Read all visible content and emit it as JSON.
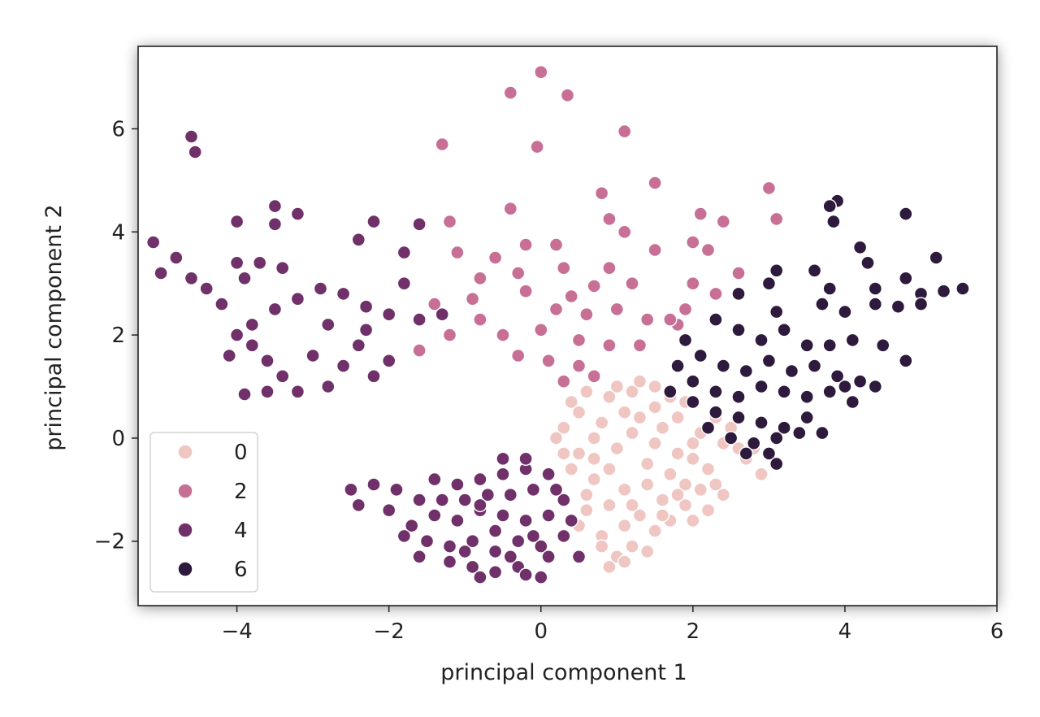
{
  "chart_data": {
    "type": "scatter",
    "title": "",
    "xlabel": "principal component 1",
    "ylabel": "principal component 2",
    "xlim": [
      -5.3,
      6.0
    ],
    "ylim": [
      -3.25,
      7.6
    ],
    "xticks": [
      -4,
      -2,
      0,
      2,
      4,
      6
    ],
    "yticks": [
      -2,
      0,
      2,
      4,
      6
    ],
    "xtick_labels": [
      "−4",
      "−2",
      "0",
      "2",
      "4",
      "6"
    ],
    "ytick_labels": [
      "−2",
      "0",
      "2",
      "4",
      "6"
    ],
    "grid": false,
    "legend": {
      "placement": "lower-left",
      "entries": [
        {
          "label": "0",
          "color": "#efc6c2"
        },
        {
          "label": "2",
          "color": "#c86f96"
        },
        {
          "label": "4",
          "color": "#70306a"
        },
        {
          "label": "6",
          "color": "#2e1a3c"
        }
      ]
    },
    "series": [
      {
        "color": "#efc6c2",
        "points": [
          [
            0.4,
            0.7
          ],
          [
            0.6,
            0.9
          ],
          [
            0.9,
            0.8
          ],
          [
            1.2,
            0.9
          ],
          [
            1.5,
            0.6
          ],
          [
            1.8,
            0.4
          ],
          [
            2.1,
            0.1
          ],
          [
            2.4,
            -0.1
          ],
          [
            2.7,
            -0.4
          ],
          [
            2.9,
            -0.7
          ],
          [
            0.3,
            0.2
          ],
          [
            0.5,
            -0.3
          ],
          [
            0.7,
            -0.8
          ],
          [
            0.9,
            -1.3
          ],
          [
            1.1,
            -1.7
          ],
          [
            1.3,
            -1.5
          ],
          [
            1.6,
            -1.2
          ],
          [
            1.9,
            -0.9
          ],
          [
            2.2,
            -0.6
          ],
          [
            0.8,
            0.3
          ],
          [
            1.0,
            -0.2
          ],
          [
            1.2,
            0.1
          ],
          [
            1.4,
            -0.5
          ],
          [
            1.6,
            0.2
          ],
          [
            1.8,
            -0.3
          ],
          [
            2.0,
            -0.1
          ],
          [
            0.6,
            -1.4
          ],
          [
            0.8,
            -1.9
          ],
          [
            1.0,
            -2.3
          ],
          [
            1.2,
            -2.1
          ],
          [
            1.5,
            -1.8
          ],
          [
            1.7,
            -1.6
          ],
          [
            0.5,
            0.5
          ],
          [
            0.7,
            0.0
          ],
          [
            1.1,
            0.5
          ],
          [
            1.3,
            0.4
          ],
          [
            1.5,
            -0.1
          ],
          [
            1.7,
            -0.7
          ],
          [
            2.0,
            -0.4
          ],
          [
            2.3,
            -0.9
          ],
          [
            0.4,
            -0.6
          ],
          [
            0.6,
            -1.1
          ],
          [
            0.9,
            -0.6
          ],
          [
            1.1,
            -1.0
          ],
          [
            1.4,
            -0.9
          ],
          [
            1.6,
            -1.5
          ],
          [
            1.9,
            -1.3
          ],
          [
            2.1,
            -1.0
          ],
          [
            2.5,
            0.2
          ],
          [
            2.6,
            -0.2
          ],
          [
            2.8,
            -0.2
          ],
          [
            0.2,
            0.0
          ],
          [
            0.3,
            -0.3
          ],
          [
            1.0,
            1.0
          ],
          [
            1.3,
            1.1
          ],
          [
            1.5,
            1.0
          ],
          [
            1.7,
            0.8
          ],
          [
            0.8,
            -2.1
          ],
          [
            1.1,
            -2.4
          ],
          [
            1.4,
            -2.2
          ],
          [
            2.2,
            -1.4
          ],
          [
            2.4,
            -1.1
          ],
          [
            0.9,
            -2.5
          ],
          [
            1.2,
            -1.3
          ],
          [
            1.8,
            -1.1
          ],
          [
            0.5,
            -1.7
          ],
          [
            2.0,
            -1.6
          ],
          [
            2.3,
            0.4
          ],
          [
            1.9,
            0.7
          ],
          [
            0.7,
            -0.4
          ]
        ]
      },
      {
        "color": "#c86f96",
        "points": [
          [
            -0.4,
            6.7
          ],
          [
            0.0,
            7.1
          ],
          [
            0.35,
            6.65
          ],
          [
            1.1,
            5.95
          ],
          [
            -1.3,
            5.7
          ],
          [
            -0.05,
            5.65
          ],
          [
            1.5,
            4.95
          ],
          [
            0.8,
            4.75
          ],
          [
            -0.4,
            4.45
          ],
          [
            3.0,
            4.85
          ],
          [
            2.1,
            4.35
          ],
          [
            2.4,
            4.2
          ],
          [
            3.1,
            4.25
          ],
          [
            -1.2,
            4.2
          ],
          [
            0.9,
            4.25
          ],
          [
            1.1,
            4.0
          ],
          [
            0.2,
            3.75
          ],
          [
            -0.2,
            3.75
          ],
          [
            1.5,
            3.65
          ],
          [
            2.0,
            3.8
          ],
          [
            2.2,
            3.65
          ],
          [
            -0.6,
            3.5
          ],
          [
            -1.1,
            3.6
          ],
          [
            0.3,
            3.3
          ],
          [
            0.9,
            3.3
          ],
          [
            -0.8,
            3.1
          ],
          [
            -0.3,
            3.2
          ],
          [
            0.7,
            2.95
          ],
          [
            1.2,
            3.0
          ],
          [
            2.0,
            3.0
          ],
          [
            2.3,
            2.8
          ],
          [
            -1.4,
            2.6
          ],
          [
            -0.9,
            2.7
          ],
          [
            0.2,
            2.5
          ],
          [
            0.6,
            2.4
          ],
          [
            1.0,
            2.5
          ],
          [
            1.4,
            2.3
          ],
          [
            1.8,
            2.2
          ],
          [
            -1.6,
            2.3
          ],
          [
            -1.2,
            2.0
          ],
          [
            -0.5,
            2.0
          ],
          [
            0.0,
            2.1
          ],
          [
            0.5,
            1.9
          ],
          [
            0.9,
            1.8
          ],
          [
            1.3,
            1.8
          ],
          [
            1.7,
            2.3
          ],
          [
            -0.3,
            1.6
          ],
          [
            0.1,
            1.5
          ],
          [
            0.5,
            1.4
          ],
          [
            -1.6,
            1.7
          ],
          [
            -0.8,
            2.3
          ],
          [
            0.3,
            1.1
          ],
          [
            0.7,
            1.2
          ],
          [
            1.9,
            2.5
          ],
          [
            2.6,
            3.2
          ],
          [
            -0.2,
            2.85
          ],
          [
            0.4,
            2.75
          ]
        ]
      },
      {
        "color": "#70306a",
        "points": [
          [
            -4.6,
            5.85
          ],
          [
            -4.55,
            5.55
          ],
          [
            -5.1,
            3.8
          ],
          [
            -4.8,
            3.5
          ],
          [
            -5.0,
            3.2
          ],
          [
            -4.6,
            3.1
          ],
          [
            -4.4,
            2.9
          ],
          [
            -4.2,
            2.6
          ],
          [
            -4.0,
            4.2
          ],
          [
            -3.5,
            4.5
          ],
          [
            -3.5,
            4.15
          ],
          [
            -3.2,
            4.35
          ],
          [
            -2.4,
            3.85
          ],
          [
            -2.2,
            4.2
          ],
          [
            -1.6,
            4.15
          ],
          [
            -4.0,
            3.4
          ],
          [
            -3.9,
            3.1
          ],
          [
            -3.7,
            3.4
          ],
          [
            -3.4,
            3.3
          ],
          [
            -3.2,
            2.7
          ],
          [
            -2.9,
            2.9
          ],
          [
            -2.6,
            2.8
          ],
          [
            -2.3,
            2.55
          ],
          [
            -2.0,
            2.4
          ],
          [
            -1.8,
            3.6
          ],
          [
            -1.8,
            3.0
          ],
          [
            -1.6,
            2.3
          ],
          [
            -4.0,
            2.0
          ],
          [
            -3.8,
            1.8
          ],
          [
            -3.6,
            1.5
          ],
          [
            -3.4,
            1.2
          ],
          [
            -3.2,
            0.9
          ],
          [
            -3.0,
            1.6
          ],
          [
            -2.8,
            2.2
          ],
          [
            -2.6,
            1.4
          ],
          [
            -2.4,
            1.8
          ],
          [
            -2.2,
            1.2
          ],
          [
            -4.1,
            1.6
          ],
          [
            -3.8,
            2.2
          ],
          [
            -3.5,
            2.5
          ],
          [
            -2.8,
            1.0
          ],
          [
            -2.0,
            1.5
          ],
          [
            -3.9,
            0.85
          ],
          [
            -3.6,
            0.9
          ],
          [
            -2.5,
            -1.0
          ],
          [
            -2.2,
            -0.9
          ],
          [
            -1.9,
            -1.0
          ],
          [
            -1.6,
            -1.2
          ],
          [
            -1.4,
            -0.8
          ],
          [
            -1.1,
            -0.9
          ],
          [
            -0.8,
            -0.8
          ],
          [
            -0.5,
            -0.7
          ],
          [
            -0.2,
            -0.6
          ],
          [
            0.1,
            -0.7
          ],
          [
            -2.0,
            -1.4
          ],
          [
            -1.7,
            -1.7
          ],
          [
            -1.4,
            -1.5
          ],
          [
            -1.1,
            -1.6
          ],
          [
            -0.8,
            -1.4
          ],
          [
            -0.5,
            -1.5
          ],
          [
            -0.2,
            -1.6
          ],
          [
            0.1,
            -1.5
          ],
          [
            0.3,
            -1.2
          ],
          [
            -1.5,
            -2.0
          ],
          [
            -1.2,
            -2.1
          ],
          [
            -0.9,
            -2.0
          ],
          [
            -0.6,
            -2.2
          ],
          [
            -0.3,
            -2.0
          ],
          [
            0.0,
            -2.1
          ],
          [
            0.3,
            -1.9
          ],
          [
            -1.2,
            -2.4
          ],
          [
            -0.9,
            -2.5
          ],
          [
            -0.6,
            -2.6
          ],
          [
            -0.3,
            -2.5
          ],
          [
            0.0,
            -2.7
          ],
          [
            -0.8,
            -2.7
          ],
          [
            -0.2,
            -2.65
          ],
          [
            -1.8,
            -1.9
          ],
          [
            -2.4,
            -1.3
          ],
          [
            0.5,
            -2.3
          ],
          [
            -1.3,
            -1.2
          ],
          [
            -1.0,
            -1.2
          ],
          [
            -0.7,
            -1.1
          ],
          [
            -0.4,
            -1.1
          ],
          [
            -0.1,
            -1.0
          ],
          [
            0.2,
            -1.0
          ],
          [
            -0.6,
            -1.8
          ],
          [
            -0.1,
            -1.9
          ],
          [
            0.4,
            -1.6
          ],
          [
            -0.2,
            -0.4
          ],
          [
            -0.5,
            -0.4
          ],
          [
            -0.8,
            -1.3
          ],
          [
            -1.0,
            -2.2
          ],
          [
            -1.6,
            -2.3
          ],
          [
            -0.4,
            -2.3
          ],
          [
            0.1,
            -2.3
          ],
          [
            -2.3,
            2.1
          ],
          [
            -1.3,
            2.4
          ]
        ]
      },
      {
        "color": "#2e1a3c",
        "points": [
          [
            3.9,
            4.6
          ],
          [
            3.8,
            4.5
          ],
          [
            3.85,
            4.2
          ],
          [
            4.8,
            4.35
          ],
          [
            3.1,
            3.25
          ],
          [
            3.6,
            3.25
          ],
          [
            4.2,
            3.7
          ],
          [
            4.3,
            3.4
          ],
          [
            5.2,
            3.5
          ],
          [
            3.0,
            3.0
          ],
          [
            3.8,
            2.9
          ],
          [
            4.4,
            2.9
          ],
          [
            4.8,
            3.1
          ],
          [
            5.0,
            2.8
          ],
          [
            5.3,
            2.85
          ],
          [
            5.55,
            2.9
          ],
          [
            2.6,
            2.8
          ],
          [
            3.1,
            2.45
          ],
          [
            3.7,
            2.6
          ],
          [
            4.0,
            2.45
          ],
          [
            4.4,
            2.6
          ],
          [
            4.7,
            2.55
          ],
          [
            5.0,
            2.6
          ],
          [
            2.3,
            2.3
          ],
          [
            2.6,
            2.1
          ],
          [
            2.9,
            1.9
          ],
          [
            3.2,
            2.1
          ],
          [
            3.5,
            1.8
          ],
          [
            3.8,
            1.8
          ],
          [
            4.1,
            1.9
          ],
          [
            4.5,
            1.8
          ],
          [
            4.8,
            1.5
          ],
          [
            1.9,
            1.9
          ],
          [
            2.1,
            1.6
          ],
          [
            2.4,
            1.4
          ],
          [
            2.7,
            1.3
          ],
          [
            3.0,
            1.5
          ],
          [
            3.3,
            1.3
          ],
          [
            3.6,
            1.4
          ],
          [
            3.9,
            1.2
          ],
          [
            4.2,
            1.1
          ],
          [
            4.4,
            1.0
          ],
          [
            1.8,
            1.4
          ],
          [
            2.0,
            1.1
          ],
          [
            2.3,
            0.9
          ],
          [
            2.6,
            0.8
          ],
          [
            2.9,
            1.0
          ],
          [
            3.2,
            0.9
          ],
          [
            3.5,
            0.8
          ],
          [
            3.8,
            0.9
          ],
          [
            4.1,
            0.7
          ],
          [
            2.0,
            0.7
          ],
          [
            2.3,
            0.5
          ],
          [
            2.6,
            0.4
          ],
          [
            2.9,
            0.3
          ],
          [
            3.2,
            0.2
          ],
          [
            3.5,
            0.4
          ],
          [
            2.5,
            0.0
          ],
          [
            2.8,
            -0.1
          ],
          [
            3.1,
            0.0
          ],
          [
            3.4,
            0.1
          ],
          [
            2.7,
            -0.3
          ],
          [
            3.0,
            -0.3
          ],
          [
            3.1,
            -0.5
          ],
          [
            3.7,
            0.1
          ],
          [
            4.0,
            1.0
          ],
          [
            1.7,
            0.9
          ],
          [
            2.2,
            0.2
          ]
        ]
      }
    ]
  }
}
